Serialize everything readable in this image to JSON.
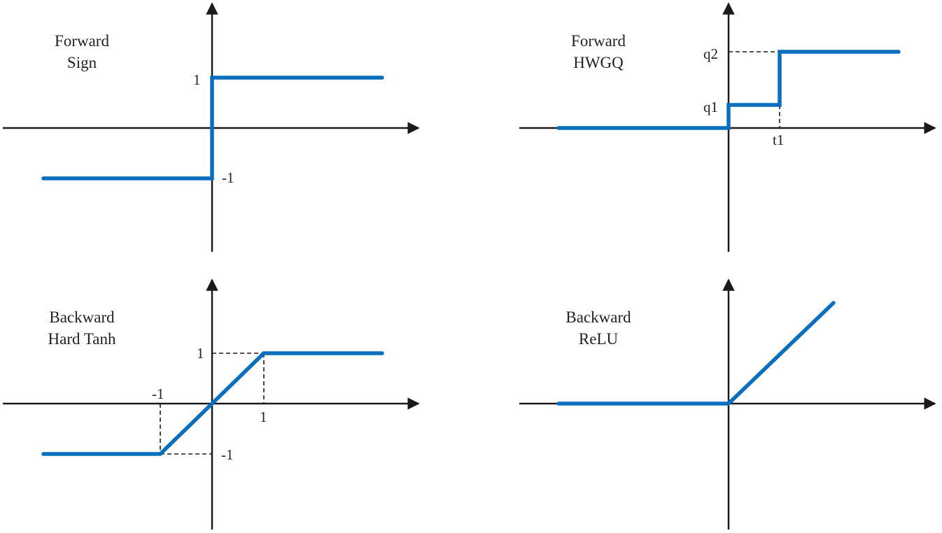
{
  "figure": {
    "curve_color": "#0b6fbd",
    "axis_color": "#1a1a1a"
  },
  "panels": [
    {
      "id": "forward-sign",
      "title_line1": "Forward",
      "title_line2": "Sign",
      "function": "sign",
      "x_range": [
        -2.5,
        2.0
      ],
      "y_range": [
        -1.0,
        1.0
      ],
      "breakpoints": [
        0
      ],
      "levels": [
        -1,
        1
      ],
      "labels": {
        "pos_one": "1",
        "neg_one": "-1"
      }
    },
    {
      "id": "forward-hwgq",
      "title_line1": "Forward",
      "title_line2": "HWGQ",
      "function": "hwgq",
      "x_range": [
        -2.5,
        2.5
      ],
      "y_range": [
        0,
        2.0
      ],
      "breakpoints": [
        0,
        1
      ],
      "levels": [
        0,
        1,
        2
      ],
      "labels": {
        "q1": "q1",
        "q2": "q2",
        "t1": "t1"
      }
    },
    {
      "id": "backward-hard-tanh",
      "title_line1": "Backward",
      "title_line2": "Hard Tanh",
      "function": "hard_tanh",
      "x_range": [
        -2.5,
        2.5
      ],
      "y_range": [
        -1.0,
        1.0
      ],
      "breakpoints": [
        -1,
        1
      ],
      "levels": [
        -1,
        1
      ],
      "labels": {
        "y_pos": "1",
        "y_neg": "-1",
        "x_pos": "1",
        "x_neg": "-1"
      }
    },
    {
      "id": "backward-relu",
      "title_line1": "Backward",
      "title_line2": "ReLU",
      "function": "relu",
      "x_range": [
        -2.5,
        2.0
      ],
      "y_range": [
        0,
        2.0
      ],
      "breakpoints": [
        0
      ],
      "levels": [
        0
      ],
      "labels": {}
    }
  ]
}
